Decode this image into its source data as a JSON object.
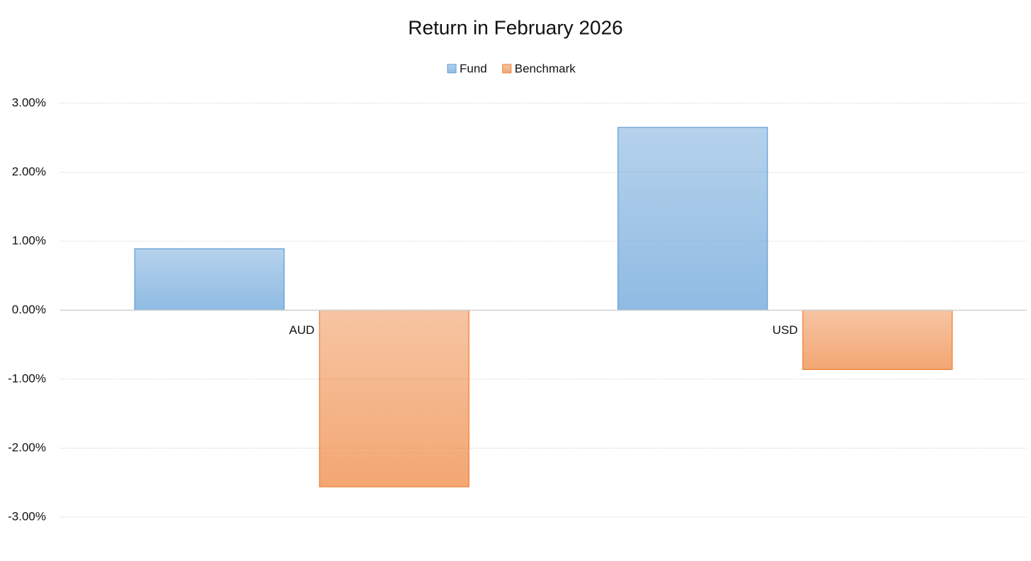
{
  "chart_data": {
    "type": "bar",
    "title": "Return in February 2026",
    "categories": [
      "AUD",
      "USD"
    ],
    "series": [
      {
        "name": "Fund",
        "color": "#5b9bd5",
        "values": [
          0.89,
          2.65
        ]
      },
      {
        "name": "Benchmark",
        "color": "#ed7d31",
        "values": [
          -2.56,
          -0.86
        ]
      }
    ],
    "ylim": [
      -3,
      3
    ],
    "yticks": [
      {
        "value": -3,
        "label": "-3.00%"
      },
      {
        "value": -2,
        "label": "-2.00%"
      },
      {
        "value": -1,
        "label": "-1.00%"
      },
      {
        "value": 0,
        "label": "0.00%"
      },
      {
        "value": 1,
        "label": "1.00%"
      },
      {
        "value": 2,
        "label": "2.00%"
      },
      {
        "value": 3,
        "label": "3.00%"
      }
    ],
    "grid": true,
    "legend": "top"
  }
}
